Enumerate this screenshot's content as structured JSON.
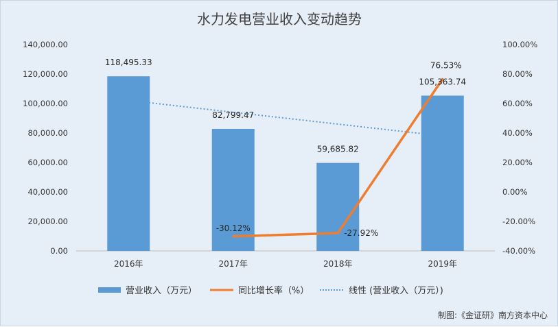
{
  "chart_data": {
    "type": "bar",
    "title": "水力发电营业收入变动趋势",
    "categories": [
      "2016年",
      "2017年",
      "2018年",
      "2019年"
    ],
    "series": [
      {
        "name": "营业收入（万元）",
        "kind": "bar",
        "axis": "left",
        "color": "#5b9bd5",
        "values": [
          118495.33,
          82799.47,
          59685.82,
          105363.74
        ],
        "labels": [
          "118,495.33",
          "82,799.47",
          "59,685.82",
          "105,363.74"
        ]
      },
      {
        "name": "同比增长率（%）",
        "kind": "line",
        "axis": "right",
        "color": "#ed7d31",
        "values": [
          null,
          -30.12,
          -27.92,
          76.53
        ],
        "labels": [
          "",
          "-30.12%",
          "-27.92%",
          "76.53%"
        ]
      },
      {
        "name": "线性 (营业收入（万元）)",
        "kind": "trendline",
        "axis": "left",
        "color": "#5b9bd5",
        "values": [
          102124.0,
          94080.0,
          86036.0,
          77993.0
        ]
      }
    ],
    "y_left": {
      "range": [
        0,
        140000
      ],
      "ticks": [
        "0.00",
        "20,000.00",
        "40,000.00",
        "60,000.00",
        "80,000.00",
        "100,000.00",
        "120,000.00",
        "140,000.00"
      ]
    },
    "y_right": {
      "range": [
        -40,
        100
      ],
      "ticks": [
        "-40.00%",
        "-20.00%",
        "0.00%",
        "20.00%",
        "40.00%",
        "60.00%",
        "80.00%",
        "100.00%"
      ]
    },
    "grid": false,
    "legend_position": "bottom"
  },
  "source": "制图:《金证研》南方资本中心"
}
